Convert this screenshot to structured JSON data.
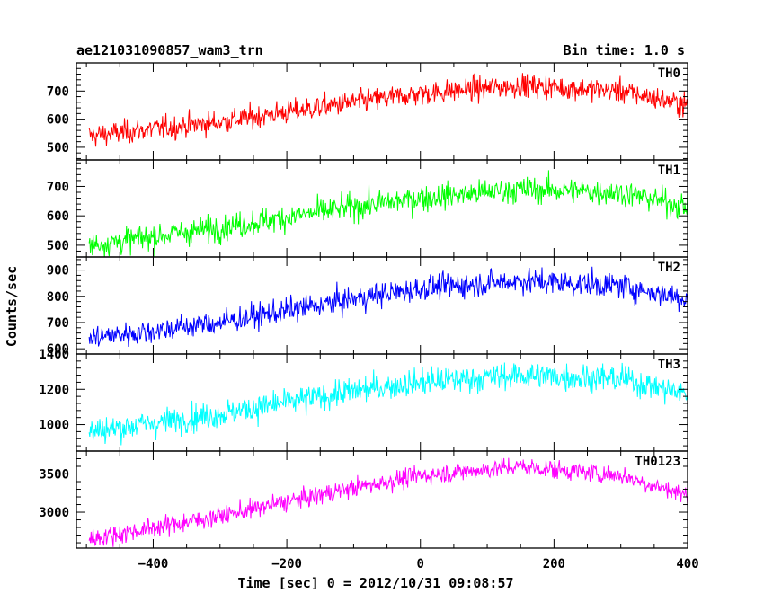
{
  "header": {
    "title": "ae121031090857_wam3_trn",
    "bin_time": "Bin time: 1.0 s"
  },
  "chart_data": {
    "type": "line",
    "x_label": "Time [sec] 0 = 2012/10/31 09:08:57",
    "y_label": "Counts/sec",
    "xlim": [
      -515,
      400
    ],
    "x_ticks": [
      -400,
      -200,
      0,
      200,
      400
    ],
    "x_data": {
      "start": -496,
      "end": 400,
      "step": 1.0
    },
    "panels": [
      {
        "name": "TH0",
        "color": "#ff0000",
        "ylim": [
          455,
          800
        ],
        "y_ticks": [
          500,
          600,
          700
        ],
        "y_tick_labels": [
          "500",
          "600",
          "700"
        ],
        "trend": [
          [
            -496,
            540
          ],
          [
            -300,
            590
          ],
          [
            -100,
            660
          ],
          [
            0,
            690
          ],
          [
            150,
            720
          ],
          [
            300,
            700
          ],
          [
            400,
            650
          ]
        ],
        "noise_amplitude": 70
      },
      {
        "name": "TH1",
        "color": "#00ff00",
        "ylim": [
          460,
          790
        ],
        "y_ticks": [
          500,
          600,
          700
        ],
        "y_tick_labels": [
          "500",
          "600",
          "700"
        ],
        "trend": [
          [
            -496,
            500
          ],
          [
            -300,
            560
          ],
          [
            -100,
            630
          ],
          [
            0,
            660
          ],
          [
            150,
            690
          ],
          [
            300,
            680
          ],
          [
            400,
            630
          ]
        ],
        "noise_amplitude": 75
      },
      {
        "name": "TH2",
        "color": "#0000ff",
        "ylim": [
          580,
          950
        ],
        "y_ticks": [
          600,
          700,
          800,
          900
        ],
        "y_tick_labels": [
          "600",
          "700",
          "800",
          "900"
        ],
        "trend": [
          [
            -496,
            640
          ],
          [
            -300,
            700
          ],
          [
            -100,
            790
          ],
          [
            0,
            830
          ],
          [
            150,
            860
          ],
          [
            300,
            840
          ],
          [
            400,
            790
          ]
        ],
        "noise_amplitude": 80
      },
      {
        "name": "TH3",
        "color": "#00ffff",
        "ylim": [
          850,
          1400
        ],
        "y_ticks": [
          1000,
          1200,
          1400
        ],
        "y_tick_labels": [
          "1000",
          "1200",
          "1400"
        ],
        "trend": [
          [
            -496,
            960
          ],
          [
            -300,
            1060
          ],
          [
            -100,
            1190
          ],
          [
            0,
            1240
          ],
          [
            150,
            1280
          ],
          [
            300,
            1260
          ],
          [
            400,
            1170
          ]
        ],
        "noise_amplitude": 130
      },
      {
        "name": "TH0123",
        "color": "#ff00ff",
        "ylim": [
          2530,
          3800
        ],
        "y_ticks": [
          3000,
          3500
        ],
        "y_tick_labels": [
          "3000",
          "3500"
        ],
        "trend": [
          [
            -496,
            2650
          ],
          [
            -300,
            2950
          ],
          [
            -100,
            3320
          ],
          [
            0,
            3480
          ],
          [
            150,
            3600
          ],
          [
            300,
            3480
          ],
          [
            400,
            3220
          ]
        ],
        "noise_amplitude": 210
      }
    ]
  }
}
